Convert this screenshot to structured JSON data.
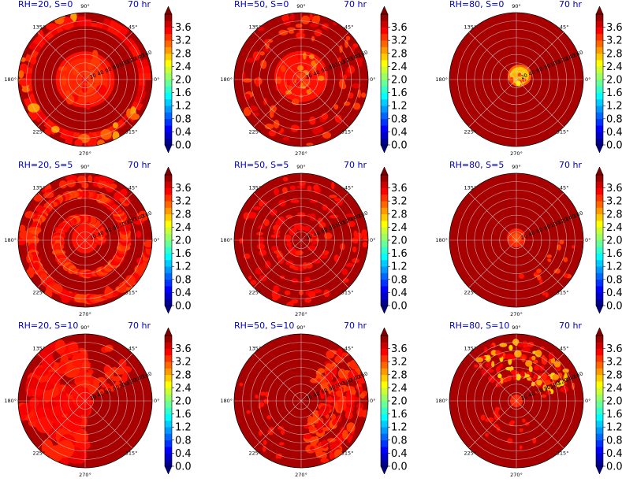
{
  "chart_data": {
    "type": "heatmap",
    "layout": "polar",
    "time_label": "70 hr",
    "angle_ticks": [
      "0°",
      "45°",
      "90°",
      "135°",
      "180°",
      "225°",
      "270°",
      "315°"
    ],
    "radial_ticks": [
      "20",
      "40",
      "60",
      "80",
      "100",
      "120",
      "140",
      "160"
    ],
    "colorbar": {
      "colormap": "jet",
      "min": 0.0,
      "max": 4.0,
      "ticks": [
        "0.0",
        "0.4",
        "0.8",
        "1.2",
        "1.6",
        "2.0",
        "2.4",
        "2.8",
        "3.2",
        "3.6"
      ]
    },
    "panels": [
      {
        "title": "RH=20, S=0",
        "time": "70 hr",
        "pattern": "inner_disc_hot_outer_ring"
      },
      {
        "title": "RH=50, S=0",
        "time": "70 hr",
        "pattern": "inner_disc_patchy_outer"
      },
      {
        "title": "RH=80, S=0",
        "time": "70 hr",
        "pattern": "small_center_yellow"
      },
      {
        "title": "RH=20, S=5",
        "time": "70 hr",
        "pattern": "spiral_bands"
      },
      {
        "title": "RH=50, S=5",
        "time": "70 hr",
        "pattern": "scattered_rings"
      },
      {
        "title": "RH=80, S=5",
        "time": "70 hr",
        "pattern": "small_center_sparse"
      },
      {
        "title": "RH=20, S=10",
        "time": "70 hr",
        "pattern": "left_half_hot"
      },
      {
        "title": "RH=50, S=10",
        "time": "70 hr",
        "pattern": "right_arc_hot"
      },
      {
        "title": "RH=80, S=10",
        "time": "70 hr",
        "pattern": "upper_arc_yellow"
      }
    ]
  }
}
